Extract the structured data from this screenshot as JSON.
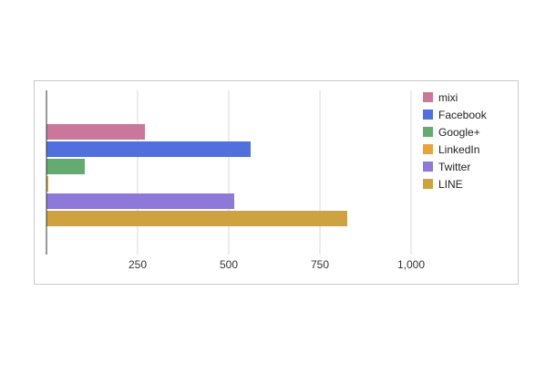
{
  "chart_data": {
    "type": "bar",
    "orientation": "horizontal",
    "title": "",
    "xlabel": "",
    "ylabel": "",
    "xlim": [
      0,
      1000
    ],
    "x_ticks": [
      "250",
      "500",
      "750",
      "1,000"
    ],
    "x_tick_values": [
      250,
      500,
      750,
      1000
    ],
    "grid": true,
    "legend_position": "right",
    "series": [
      {
        "name": "mixi",
        "value": 270,
        "color": "#c9789a"
      },
      {
        "name": "Facebook",
        "value": 560,
        "color": "#5170dd"
      },
      {
        "name": "Google+",
        "value": 105,
        "color": "#63ab6e"
      },
      {
        "name": "LinkedIn",
        "value": 5,
        "color": "#e8a43a"
      },
      {
        "name": "Twitter",
        "value": 515,
        "color": "#8e78d8"
      },
      {
        "name": "LINE",
        "value": 825,
        "color": "#cea23e"
      }
    ]
  }
}
